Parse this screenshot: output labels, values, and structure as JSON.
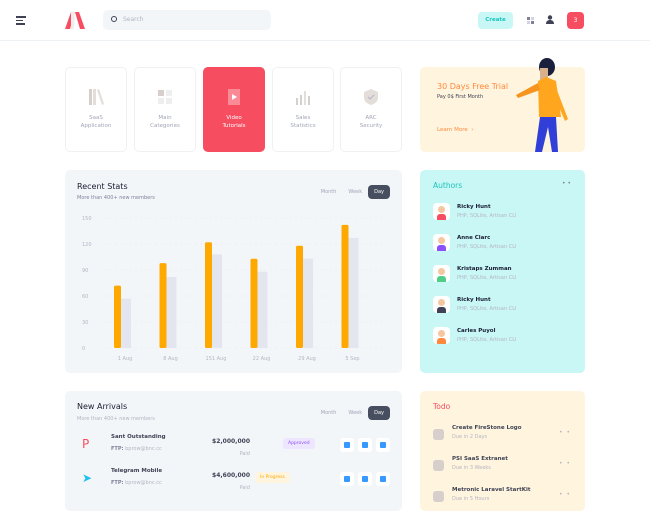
{
  "header": {
    "search_placeholder": "Search",
    "create_label": "Create",
    "notification_count": "3"
  },
  "tiles": [
    {
      "line1": "SaaS",
      "line2": "Application"
    },
    {
      "line1": "Main",
      "line2": "Categories"
    },
    {
      "line1": "Video",
      "line2": "Tutorials",
      "active": true
    },
    {
      "line1": "Sales",
      "line2": "Statistics"
    },
    {
      "line1": "ARC",
      "line2": "Security"
    }
  ],
  "trial": {
    "title": "30 Days Free Trial",
    "subtitle": "Pay 0$ First Month",
    "link": "Learn More"
  },
  "recent_stats": {
    "title": "Recent Stats",
    "subtitle": "More than 400+ new members",
    "tabs": [
      "Month",
      "Week",
      "Day"
    ],
    "active_tab": "Day"
  },
  "chart_data": {
    "type": "bar",
    "categories": [
      "1 Aug",
      "8 Aug",
      "151 Aug",
      "22 Aug",
      "29 Aug",
      "5 Sep"
    ],
    "series": [
      {
        "values": [
          72,
          98,
          122,
          103,
          118,
          142
        ],
        "color": "#ffa800"
      },
      {
        "values": [
          57,
          82,
          108,
          88,
          103,
          127
        ],
        "color": "#e4e6ef"
      }
    ],
    "yticks": [
      0,
      30,
      60,
      90,
      120,
      150
    ],
    "ylim": [
      0,
      150
    ],
    "grid": true
  },
  "authors": {
    "title": "Authors",
    "items": [
      {
        "name": "Ricky Hunt",
        "skills": "PHP, SQLite, Artisan CLI",
        "color": "#f64e60"
      },
      {
        "name": "Anne Clarc",
        "skills": "PHP, SQLite, Artisan CLI",
        "color": "#8950fc"
      },
      {
        "name": "Kristaps Zumman",
        "skills": "PHP, SQLite, Artisan CLI",
        "color": "#50cd89"
      },
      {
        "name": "Ricky Hunt",
        "skills": "PHP, SQLite, Artisan CLI",
        "color": "#3f4254"
      },
      {
        "name": "Carles Puyol",
        "skills": "PHP, SQLite, Artisan CLI",
        "color": "#ff8a3d"
      }
    ]
  },
  "new_arrivals": {
    "title": "New Arrivals",
    "subtitle": "More than 400+ new members",
    "tabs": [
      "Month",
      "Week",
      "Day"
    ],
    "active_tab": "Day",
    "rows": [
      {
        "name": "Sant Outstanding",
        "ftp_label": "FTP:",
        "ftp": "bprow@bnc.cc",
        "amount": "$2,000,000",
        "paid": "Paid",
        "status": "Approved",
        "status_color": "#8950fc",
        "status_bg": "#eee5ff"
      },
      {
        "name": "Telegram Mobile",
        "ftp_label": "FTP:",
        "ftp": "bprow@bnc.cc",
        "amount": "$4,600,000",
        "paid": "Paid",
        "status": "In Progress",
        "status_color": "#ffa800",
        "status_bg": "#fff4de"
      }
    ]
  },
  "todo": {
    "title": "Todo",
    "items": [
      {
        "title": "Create FireStone Logo",
        "due": "Due in 2 Days"
      },
      {
        "title": "PSI SaaS Extranet",
        "due": "Due in 3 Weeks"
      },
      {
        "title": "Metronic Laravel StartKit",
        "due": "Due in 5 Hours"
      }
    ]
  }
}
